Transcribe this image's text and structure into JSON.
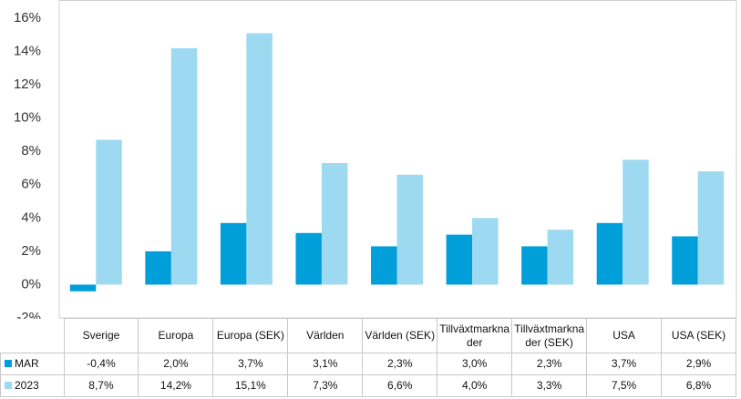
{
  "chart_data": {
    "type": "bar",
    "categories": [
      "Sverige",
      "Europa",
      "Europa (SEK)",
      "Världen",
      "Världen (SEK)",
      "Tillväxtmarknader",
      "Tillväxtmarknader (SEK)",
      "USA",
      "USA (SEK)"
    ],
    "series": [
      {
        "name": "MAR",
        "color": "#009fda",
        "values": [
          -0.4,
          2.0,
          3.7,
          3.1,
          2.3,
          3.0,
          2.3,
          3.7,
          2.9
        ],
        "value_labels": [
          "-0,4%",
          "2,0%",
          "3,7%",
          "3,1%",
          "2,3%",
          "3,0%",
          "2,3%",
          "3,7%",
          "2,9%"
        ]
      },
      {
        "name": "2023",
        "color": "#9dd9f0",
        "values": [
          8.7,
          14.2,
          15.1,
          7.3,
          6.6,
          4.0,
          3.3,
          7.5,
          6.8
        ],
        "value_labels": [
          "8,7%",
          "14,2%",
          "15,1%",
          "7,3%",
          "6,6%",
          "4,0%",
          "3,3%",
          "7,5%",
          "6,8%"
        ]
      }
    ],
    "ylim": [
      -2,
      16
    ],
    "yticks": [
      {
        "value": -2,
        "label": "-2%"
      },
      {
        "value": 0,
        "label": "0%"
      },
      {
        "value": 2,
        "label": "2%"
      },
      {
        "value": 4,
        "label": "4%"
      },
      {
        "value": 6,
        "label": "6%"
      },
      {
        "value": 8,
        "label": "8%"
      },
      {
        "value": 10,
        "label": "10%"
      },
      {
        "value": 12,
        "label": "12%"
      },
      {
        "value": 14,
        "label": "14%"
      },
      {
        "value": 16,
        "label": "16%"
      }
    ],
    "grid": false
  }
}
